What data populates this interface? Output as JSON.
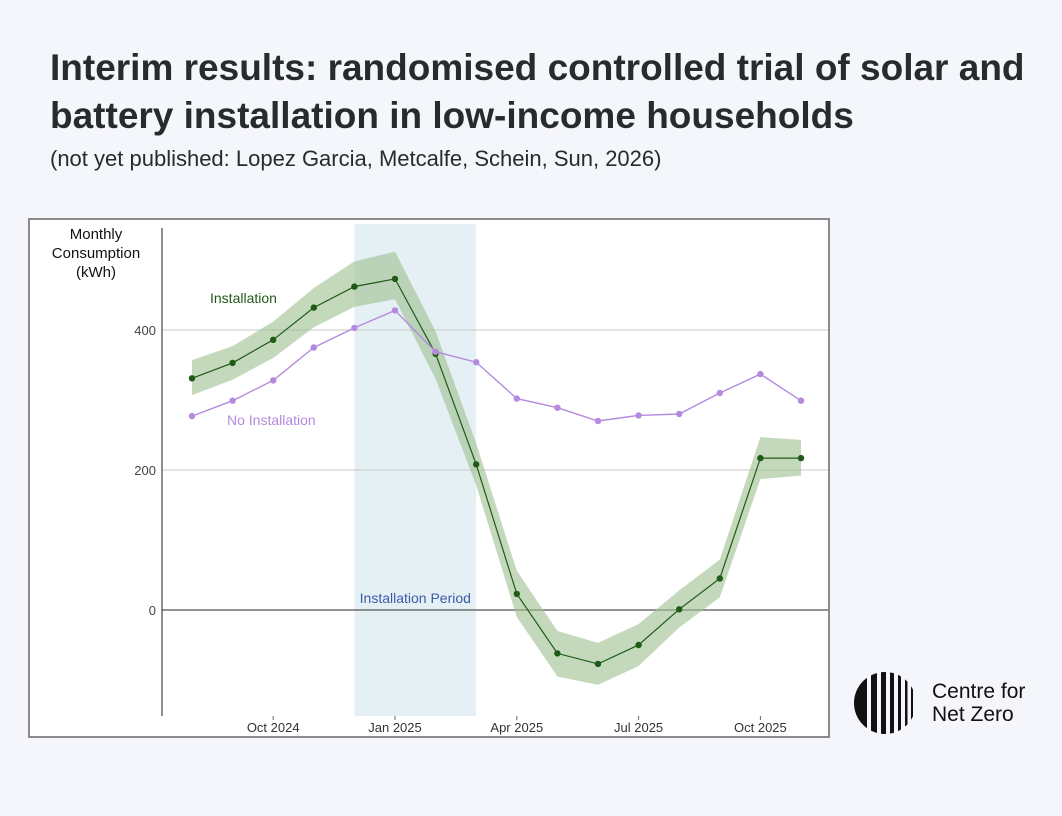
{
  "title": "Interim results: randomised controlled trial of solar and battery installation in low-income households",
  "subtitle": "(not yet published: Lopez Garcia, Metcalfe, Schein, Sun, 2026)",
  "logo": {
    "line1": "Centre for",
    "line2": "Net Zero"
  },
  "colors": {
    "installation": "#1f5a17",
    "band": "#9cc08f",
    "no_installation": "#b48ae0",
    "period": "#dcebf0",
    "period_label": "#3b5ba8"
  },
  "chart_data": {
    "type": "line",
    "ylabel_lines": [
      "Monthly",
      "Consumption",
      "(kWh)"
    ],
    "ylim": [
      -150,
      550
    ],
    "yticks": [
      0,
      200,
      400
    ],
    "x_tick_labels": [
      {
        "x": 2,
        "label": "Oct 2024"
      },
      {
        "x": 5,
        "label": "Jan 2025"
      },
      {
        "x": 8,
        "label": "Apr 2025"
      },
      {
        "x": 11,
        "label": "Jul 2025"
      },
      {
        "x": 14,
        "label": "Oct 2025"
      }
    ],
    "x": [
      0,
      1,
      2,
      3,
      4,
      5,
      6,
      7,
      8,
      9,
      10,
      11,
      12,
      13,
      14,
      15
    ],
    "series": [
      {
        "name": "Installation",
        "values": [
          331,
          353,
          386,
          432,
          462,
          473,
          366,
          208,
          23,
          -62,
          -77,
          -50,
          1,
          45,
          217,
          217
        ],
        "lower": [
          307,
          329,
          360,
          404,
          433,
          444,
          330,
          178,
          -10,
          -95,
          -107,
          -80,
          -25,
          18,
          187,
          192
        ],
        "upper": [
          357,
          377,
          412,
          460,
          498,
          512,
          398,
          238,
          56,
          -30,
          -47,
          -20,
          28,
          72,
          247,
          243
        ]
      },
      {
        "name": "No Installation",
        "values": [
          277,
          299,
          328,
          375,
          403,
          428,
          369,
          354,
          302,
          289,
          270,
          278,
          280,
          310,
          337,
          299
        ]
      }
    ],
    "shaded_region": {
      "label": "Installation Period",
      "x_start": 4,
      "x_end": 7
    }
  }
}
